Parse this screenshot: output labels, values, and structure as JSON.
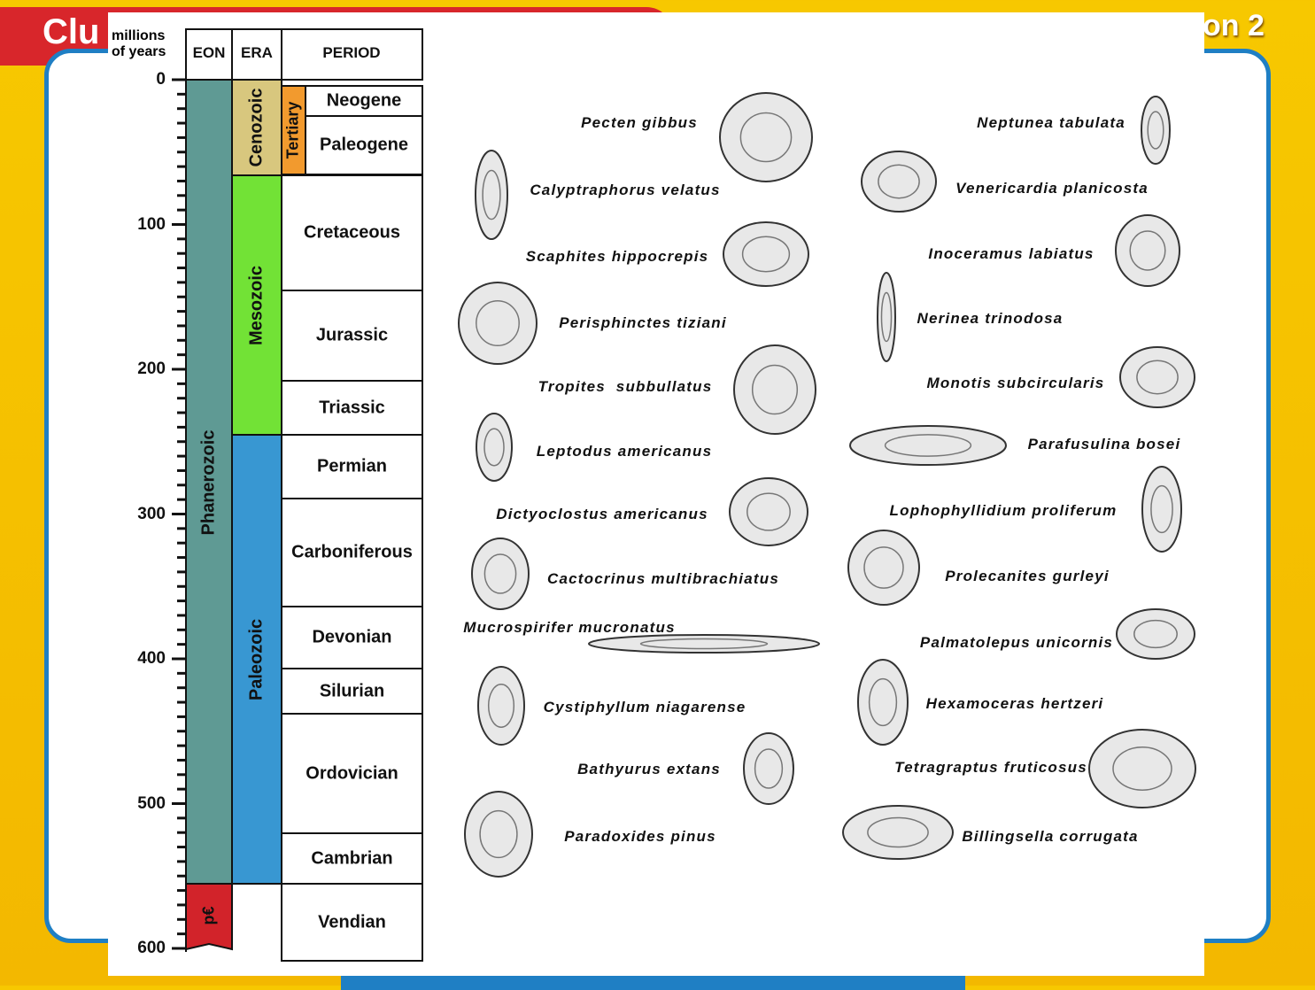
{
  "header": {
    "left_title": "Clu",
    "right_title": "on 2"
  },
  "chart": {
    "column_headers": [
      "millions of years",
      "EON",
      "ERA",
      "PERIOD"
    ],
    "age_ticks": [
      0,
      100,
      200,
      300,
      400,
      500,
      600
    ],
    "eons": [
      "Phanerozoic",
      "p€"
    ],
    "eras": [
      "Cenozoic",
      "Mesozoic",
      "Paleozoic"
    ],
    "subera": "Tertiary",
    "periods": [
      "Neogene",
      "Paleogene",
      "Cretaceous",
      "Jurassic",
      "Triassic",
      "Permian",
      "Carboniferous",
      "Devonian",
      "Silurian",
      "Ordovician",
      "Cambrian",
      "Vendian"
    ]
  },
  "fossils": [
    "Pecten gibbus",
    "Calyptraphorus velatus",
    "Scaphites hippocrepis",
    "Perisphinctes tiziani",
    "Tropites  subbullatus",
    "Leptodus americanus",
    "Dictyoclostus americanus",
    "Cactocrinus multibrachiatus",
    "Mucrospirifer mucronatus",
    "Cystiphyllum niagarense",
    "Bathyurus extans",
    "Paradoxides pinus",
    "Neptunea tabulata",
    "Venericardia planicosta",
    "Inoceramus labiatus",
    "Nerinea trinodosa",
    "Monotis subcircularis",
    "Parafusulina bosei",
    "Lophophyllidium proliferum",
    "Prolecanites gurleyi",
    "Palmatolepus unicornis",
    "Hexamoceras hertzeri",
    "Tetragraptus fruticosus",
    "Billingsella corrugata"
  ]
}
